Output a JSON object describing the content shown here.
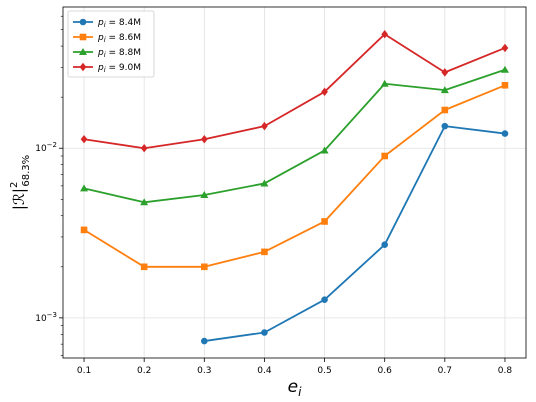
{
  "chart_data": {
    "type": "line",
    "xlabel": "e",
    "xlabel_sub": "i",
    "ylabel": "|ℛ|",
    "ylabel_sup": "2",
    "ylabel_sub": "68.3%",
    "yscale": "log",
    "xlim": [
      0.065,
      0.835
    ],
    "ylim": [
      0.00058,
      0.068
    ],
    "x": [
      0.1,
      0.2,
      0.3,
      0.4,
      0.5,
      0.6,
      0.7,
      0.8
    ],
    "xticks": [
      "0.1",
      "0.2",
      "0.3",
      "0.4",
      "0.5",
      "0.6",
      "0.7",
      "0.8"
    ],
    "yticks": [
      {
        "value": 0.001,
        "base": "10",
        "exp": "−3"
      },
      {
        "value": 0.01,
        "base": "10",
        "exp": "−2"
      }
    ],
    "grid": true,
    "legend_position": "top-left",
    "series": [
      {
        "name": "p_i = 8.4M",
        "label_main": "p",
        "label_sub": "i",
        "label_rest": " = 8.4M",
        "color": "#1f77b4",
        "marker": "circle",
        "values": [
          null,
          null,
          0.00073,
          0.00082,
          0.00128,
          0.0027,
          0.0135,
          0.0122
        ]
      },
      {
        "name": "p_i = 8.6M",
        "label_main": "p",
        "label_sub": "i",
        "label_rest": " = 8.6M",
        "color": "#ff7f0e",
        "marker": "square",
        "values": [
          0.0033,
          0.002,
          0.002,
          0.00245,
          0.0037,
          0.009,
          0.0168,
          0.0235
        ]
      },
      {
        "name": "p_i = 8.8M",
        "label_main": "p",
        "label_sub": "i",
        "label_rest": " = 8.8M",
        "color": "#2ca02c",
        "marker": "triangle",
        "values": [
          0.0058,
          0.0048,
          0.0053,
          0.0062,
          0.0097,
          0.024,
          0.022,
          0.029
        ]
      },
      {
        "name": "p_i = 9.0M",
        "label_main": "p",
        "label_sub": "i",
        "label_rest": " = 9.0M",
        "color": "#d62728",
        "marker": "diamond",
        "values": [
          0.0113,
          0.01,
          0.0113,
          0.0135,
          0.0215,
          0.047,
          0.028,
          0.039
        ]
      }
    ]
  }
}
